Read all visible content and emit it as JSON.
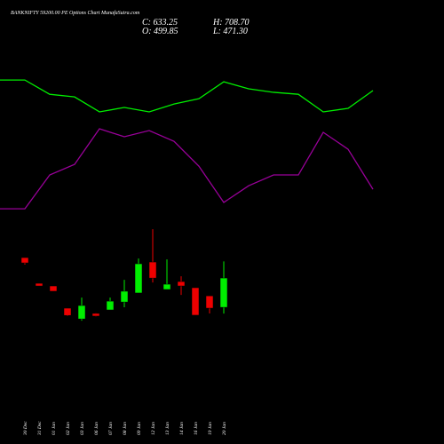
{
  "chart_data": [
    {
      "type": "line",
      "categories": [
        null,
        null,
        null,
        null,
        null,
        null,
        null,
        null,
        null,
        null,
        null,
        null,
        null,
        null,
        null,
        null
      ],
      "ylim": [
        -122,
        1898
      ],
      "series": [
        {
          "color": "#00ee00",
          "values": [
            1534,
            1534,
            1469,
            1457,
            1389,
            1409,
            1389,
            1425,
            1449,
            1526,
            1494,
            1478,
            1469,
            1389,
            1405,
            1486
          ]
        },
        {
          "color": "#990099",
          "values": [
            948,
            948,
            1102,
            1150,
            1312,
            1276,
            1304,
            1255,
            1142,
            977,
            1053,
            1102,
            1102,
            1296,
            1219,
            1037
          ]
        }
      ]
    },
    {
      "type": "candlestick",
      "title": "BANKNIFTY 59200.00 PE Options  Chart MunafaSutra.com",
      "summary": [
        {
          "value": 633.25,
          "label": "C: 633.25"
        },
        {
          "value": 708.7,
          "label": "H: 708.70"
        },
        {
          "value": 499.85,
          "label": "O: 499.85"
        },
        {
          "value": 471.3,
          "label": "L: 471.30"
        }
      ],
      "categories": [
        "30 Dec",
        "31 Dec",
        "01 Jan",
        "02 Jan",
        "03 Jan",
        "06 Jan",
        "07 Jan",
        "08 Jan",
        "09 Jan",
        "12 Jan",
        "13 Jan",
        "14 Jan",
        "16 Jan",
        "19 Jan",
        "20 Jan"
      ],
      "open": [
        726,
        609,
        597,
        496,
        447,
        472,
        488,
        524,
        565,
        706,
        581,
        617,
        589,
        552,
        499.85
      ],
      "high": [
        726,
        609,
        597,
        496,
        544,
        474,
        544,
        625,
        722,
        855,
        718,
        641,
        589,
        552,
        708.7
      ],
      "low": [
        694,
        597,
        573,
        460,
        439,
        458,
        488,
        500,
        565,
        613,
        581,
        556,
        464,
        472,
        471.3
      ],
      "close": [
        702,
        597,
        573,
        463,
        508,
        460,
        528,
        573,
        698,
        633,
        605,
        597,
        464,
        496,
        633.25
      ],
      "up_color": "#00ee00",
      "down_color": "#ee0000",
      "ylim": [
        -122,
        1898
      ]
    }
  ]
}
